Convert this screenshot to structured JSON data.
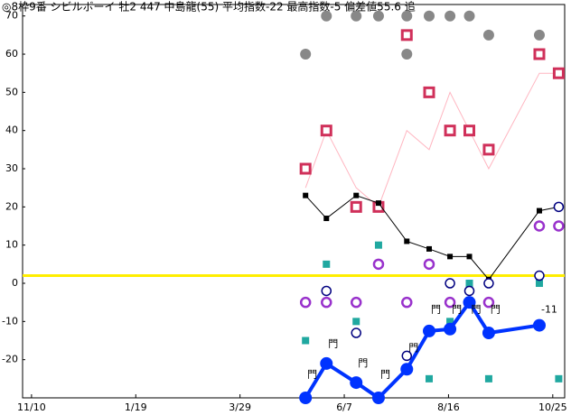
{
  "chart_data": {
    "type": "scatter",
    "title": "◎8枠9番 シビルボーイ 牡2 447 中島龍(55) 平均指数-22 最高指数-5 偏差値55.6 追",
    "xlim": [
      -6,
      358
    ],
    "ylim": [
      -30,
      73
    ],
    "xticks": [
      {
        "value": 0,
        "label": "11/10"
      },
      {
        "value": 70,
        "label": "1/19"
      },
      {
        "value": 140,
        "label": "3/29"
      },
      {
        "value": 210,
        "label": "6/7"
      },
      {
        "value": 280,
        "label": "8/16"
      },
      {
        "value": 350,
        "label": "10/25"
      }
    ],
    "yticks": [
      -20,
      -10,
      0,
      10,
      20,
      30,
      40,
      50,
      60,
      70
    ],
    "reference_line": {
      "value": 2,
      "color": "#ffee00"
    },
    "series": [
      {
        "marker": "circle-filled",
        "color": "#888888",
        "line": false,
        "x": [
          184,
          198,
          218,
          233,
          252,
          252,
          267,
          281,
          294,
          307,
          341
        ],
        "values": [
          60,
          70,
          70,
          70,
          70,
          60,
          70,
          70,
          70,
          65,
          65
        ]
      },
      {
        "marker": "none",
        "color": "#ffb6c1",
        "line": true,
        "width": 1,
        "x": [
          184,
          198,
          218,
          233,
          252,
          267,
          281,
          294,
          307,
          341,
          354
        ],
        "values": [
          25,
          40,
          25,
          20,
          40,
          35,
          50,
          40,
          30,
          55,
          55
        ]
      },
      {
        "marker": "square-open",
        "color": "#d0305a",
        "line": false,
        "x": [
          184,
          198,
          218,
          233,
          252,
          267,
          281,
          294,
          307,
          341,
          354
        ],
        "values": [
          30,
          40,
          20,
          20,
          65,
          50,
          40,
          40,
          35,
          60,
          55
        ]
      },
      {
        "marker": "square-small",
        "color": "#000000",
        "line": true,
        "width": 1,
        "x": [
          184,
          198,
          218,
          233,
          252,
          267,
          281,
          294,
          307,
          341,
          354
        ],
        "values": [
          23,
          17,
          23,
          21,
          11,
          9,
          7,
          7,
          1,
          19,
          20
        ]
      },
      {
        "marker": "square-filled",
        "color": "#20a8a0",
        "line": false,
        "x": [
          184,
          198,
          218,
          233,
          252,
          267,
          281,
          294,
          307,
          341,
          354
        ],
        "values": [
          -15,
          5,
          -10,
          10,
          -5,
          -25,
          -10,
          0,
          -25,
          0,
          -25
        ]
      },
      {
        "marker": "circle-open",
        "color": "#9932cc",
        "line": false,
        "x": [
          184,
          198,
          218,
          233,
          252,
          267,
          281,
          294,
          307,
          341,
          354
        ],
        "values": [
          -5,
          -5,
          -5,
          5,
          -5,
          5,
          -5,
          -5,
          -5,
          15,
          15
        ]
      },
      {
        "marker": "circle-open-small",
        "color": "#000080",
        "line": false,
        "x": [
          198,
          218,
          252,
          281,
          294,
          307,
          341,
          354
        ],
        "values": [
          -2,
          -13,
          -19,
          0,
          -2,
          0,
          2,
          20
        ]
      },
      {
        "marker": "circle-filled-big",
        "color": "#0033ff",
        "line": true,
        "width": 4,
        "x": [
          184,
          198,
          218,
          233,
          252,
          267,
          281,
          294,
          307,
          341
        ],
        "values": [
          -30,
          -21,
          -26,
          -30,
          -22.5,
          -12.5,
          -12,
          -5,
          -13,
          -11
        ]
      }
    ],
    "annotations": [
      {
        "text": "門",
        "x": 184,
        "y": -24
      },
      {
        "text": "門",
        "x": 198,
        "y": -16
      },
      {
        "text": "門",
        "x": 218,
        "y": -21
      },
      {
        "text": "門",
        "x": 233,
        "y": -24
      },
      {
        "text": "門",
        "x": 252,
        "y": -17
      },
      {
        "text": "門",
        "x": 267,
        "y": -7
      },
      {
        "text": "門",
        "x": 281,
        "y": -7
      },
      {
        "text": "門",
        "x": 294,
        "y": -7
      },
      {
        "text": "門",
        "x": 307,
        "y": -7
      },
      {
        "text": "-11",
        "x": 341,
        "y": -7
      }
    ]
  }
}
